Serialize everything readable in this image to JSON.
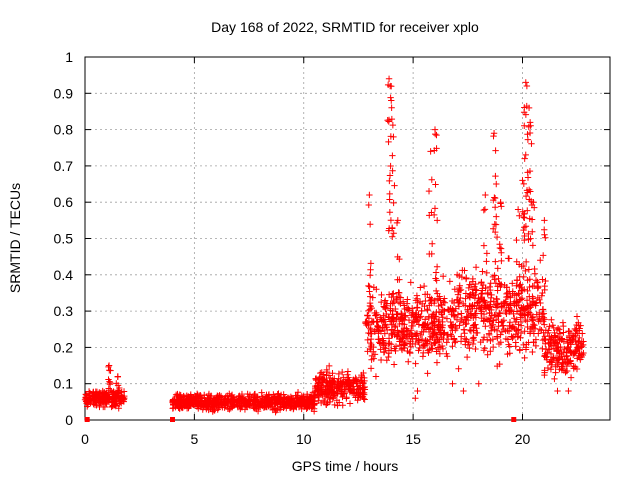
{
  "chart_data": {
    "type": "scatter",
    "title": "Day 168 of 2022, SRMTID for receiver xplo",
    "xlabel": "GPS time / hours",
    "ylabel": "SRMTID / TECUs",
    "xlim": [
      0,
      24
    ],
    "ylim": [
      0,
      1
    ],
    "grid": true,
    "x_ticks": [
      0,
      5,
      10,
      15,
      20
    ],
    "x_tick_labels": [
      "0",
      "5",
      "10",
      "15",
      "20"
    ],
    "y_ticks": [
      0,
      0.1,
      0.2,
      0.3,
      0.4,
      0.5,
      0.6,
      0.7,
      0.8,
      0.9,
      1
    ],
    "y_tick_labels": [
      "0",
      "0.1",
      "0.2",
      "0.3",
      "0.4",
      "0.5",
      "0.6",
      "0.7",
      "0.8",
      "0.9",
      "1"
    ],
    "marker": "+",
    "color": "#ff0000",
    "segments": [
      {
        "x_start": 0.0,
        "x_end": 1.8,
        "base": 0.06,
        "spread": 0.02
      },
      {
        "x_start": 4.0,
        "x_end": 10.5,
        "base": 0.05,
        "spread": 0.02
      },
      {
        "x_start": 10.5,
        "x_end": 12.8,
        "base": 0.09,
        "spread": 0.04
      },
      {
        "x_start": 12.8,
        "x_end": 17.0,
        "base": 0.26,
        "spread": 0.09
      },
      {
        "x_start": 17.0,
        "x_end": 21.0,
        "base": 0.3,
        "spread": 0.11
      },
      {
        "x_start": 21.0,
        "x_end": 22.8,
        "base": 0.2,
        "spread": 0.07
      }
    ],
    "bumps": [
      {
        "x": 1.1,
        "y": 0.15
      },
      {
        "x": 1.5,
        "y": 0.12
      }
    ],
    "spikes": [
      {
        "x": 13.0,
        "y": 0.62
      },
      {
        "x": 13.9,
        "y": 0.94
      },
      {
        "x": 13.95,
        "y": 0.92
      },
      {
        "x": 14.0,
        "y": 0.88
      },
      {
        "x": 14.1,
        "y": 0.78
      },
      {
        "x": 14.3,
        "y": 0.55
      },
      {
        "x": 15.8,
        "y": 0.74
      },
      {
        "x": 16.0,
        "y": 0.8
      },
      {
        "x": 16.1,
        "y": 0.55
      },
      {
        "x": 18.3,
        "y": 0.62
      },
      {
        "x": 18.7,
        "y": 0.79
      },
      {
        "x": 18.8,
        "y": 0.65
      },
      {
        "x": 19.0,
        "y": 0.6
      },
      {
        "x": 19.8,
        "y": 0.58
      },
      {
        "x": 20.0,
        "y": 0.66
      },
      {
        "x": 20.1,
        "y": 0.72
      },
      {
        "x": 20.15,
        "y": 0.93
      },
      {
        "x": 20.2,
        "y": 0.92
      },
      {
        "x": 20.3,
        "y": 0.86
      },
      {
        "x": 20.35,
        "y": 0.82
      },
      {
        "x": 20.5,
        "y": 0.6
      },
      {
        "x": 21.0,
        "y": 0.55
      }
    ],
    "low_outliers": [
      {
        "x": 13.3,
        "y": 0.12
      },
      {
        "x": 15.1,
        "y": 0.06
      },
      {
        "x": 15.2,
        "y": 0.08
      },
      {
        "x": 16.8,
        "y": 0.1
      },
      {
        "x": 17.3,
        "y": 0.08
      },
      {
        "x": 18.0,
        "y": 0.1
      },
      {
        "x": 21.6,
        "y": 0.08
      },
      {
        "x": 22.1,
        "y": 0.08
      }
    ],
    "zero_markers": [
      0.1,
      4.0,
      19.6
    ]
  }
}
